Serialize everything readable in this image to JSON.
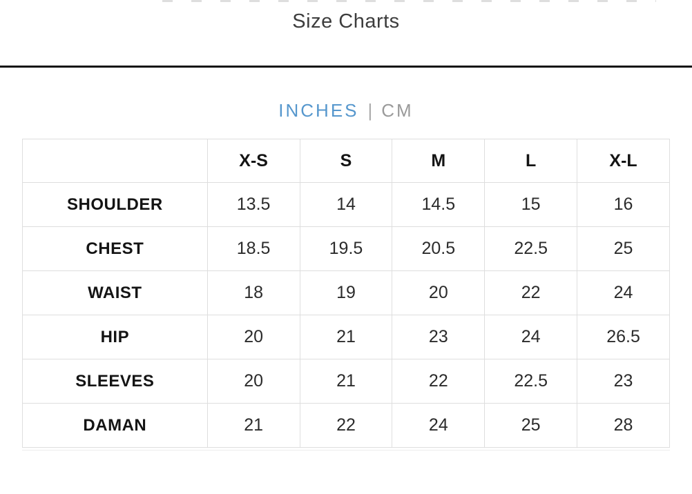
{
  "header": {
    "title": "Size Charts"
  },
  "unit_toggle": {
    "inches_label": "INCHES",
    "cm_label": "CM",
    "separator": "|",
    "selected": "INCHES",
    "selected_color": "#5697cd",
    "unselected_color": "#9a9a9a"
  },
  "size_table": {
    "unit": "INCHES",
    "columns": [
      "X-S",
      "S",
      "M",
      "L",
      "X-L"
    ],
    "rows": [
      {
        "label": "SHOULDER",
        "values": [
          "13.5",
          "14",
          "14.5",
          "15",
          "16"
        ]
      },
      {
        "label": "CHEST",
        "values": [
          "18.5",
          "19.5",
          "20.5",
          "22.5",
          "25"
        ]
      },
      {
        "label": "WAIST",
        "values": [
          "18",
          "19",
          "20",
          "22",
          "24"
        ]
      },
      {
        "label": "HIP",
        "values": [
          "20",
          "21",
          "23",
          "24",
          "26.5"
        ]
      },
      {
        "label": "SLEEVES",
        "values": [
          "20",
          "21",
          "22",
          "22.5",
          "23"
        ]
      },
      {
        "label": "DAMAN",
        "values": [
          "21",
          "22",
          "24",
          "25",
          "28"
        ]
      }
    ]
  }
}
